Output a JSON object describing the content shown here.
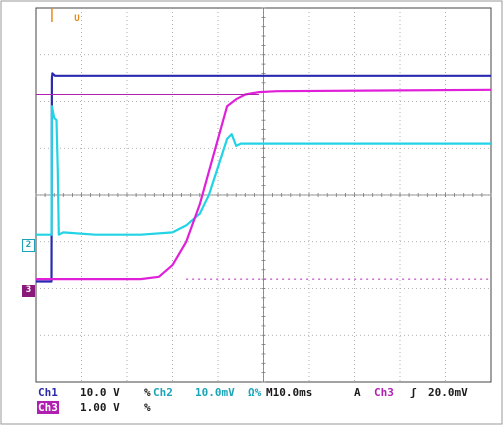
{
  "chart_data": {
    "type": "line",
    "grid": true,
    "xlim": [
      -13.0,
      87.0
    ],
    "ylim": [
      -4.0,
      4.0
    ],
    "trigger_marker": "U",
    "series": [
      {
        "name": "Ch1",
        "color": "#2a2ab0",
        "x": [
          -13.0,
          -9.6,
          -9.5,
          -9.4,
          -8.8,
          87.0
        ],
        "y": [
          -1.85,
          -1.85,
          2.5,
          2.6,
          2.55,
          2.55
        ]
      },
      {
        "name": "Ch2",
        "color": "#22d3e6",
        "x": [
          -13.0,
          -9.6,
          -9.5,
          -9.0,
          -8.5,
          -8.2,
          -8.0,
          -7.0,
          0.0,
          10.0,
          17.0,
          20.0,
          23.0,
          25.0,
          27.0,
          29.0,
          30.0,
          31.0,
          32.0,
          87.0
        ],
        "y": [
          -0.85,
          -0.85,
          1.9,
          1.65,
          1.6,
          0.5,
          -0.85,
          -0.8,
          -0.85,
          -0.85,
          -0.8,
          -0.65,
          -0.4,
          0.0,
          0.6,
          1.2,
          1.3,
          1.05,
          1.1,
          1.1
        ]
      },
      {
        "name": "Ch3",
        "color": "#e020d8",
        "x": [
          -13.0,
          10.0,
          14.0,
          17.0,
          20.0,
          23.0,
          25.0,
          27.0,
          29.0,
          31.0,
          33.0,
          36.0,
          40.0,
          87.0
        ],
        "y": [
          -1.8,
          -1.8,
          -1.75,
          -1.5,
          -1.0,
          -0.2,
          0.5,
          1.2,
          1.9,
          2.05,
          2.15,
          2.2,
          2.22,
          2.25
        ]
      }
    ],
    "readouts": {
      "ch1": {
        "label": "Ch1",
        "scale": "10.0 V",
        "coupling": "%"
      },
      "ch2": {
        "label": "Ch2",
        "scale": "10.0mV",
        "coupling": "Ω%"
      },
      "ch3": {
        "label": "Ch3",
        "scale": "1.00 V",
        "coupling": "%"
      },
      "timebase": "M10.0ms",
      "trigger_mode": "A",
      "trigger_source": "Ch3",
      "trigger_slope": "ʃ",
      "trigger_level": "20.0mV"
    },
    "channel_markers": {
      "ch2": "2",
      "ch3": "3"
    }
  }
}
